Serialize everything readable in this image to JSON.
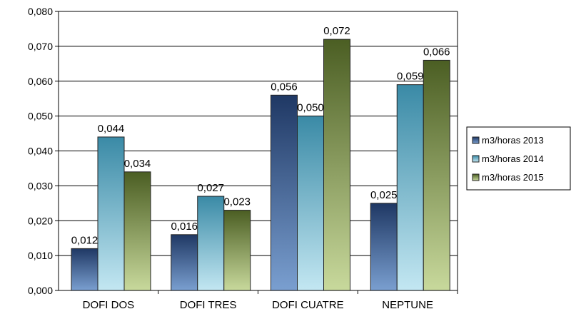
{
  "chart_data": {
    "type": "bar",
    "categories": [
      "DOFI DOS",
      "DOFI TRES",
      "DOFI CUATRE",
      "NEPTUNE"
    ],
    "series": [
      {
        "name": "m3/horas 2013",
        "values": [
          0.012,
          0.016,
          0.056,
          0.025
        ],
        "labels": [
          "0,012",
          "0,016",
          "0,056",
          "0,025"
        ],
        "color_dark": "#1f3864",
        "color_light": "#7a9fd0"
      },
      {
        "name": "m3/horas 2014",
        "values": [
          0.044,
          0.027,
          0.05,
          0.059
        ],
        "labels": [
          "0,044",
          "0,027",
          "0,050",
          "0,059"
        ],
        "color_dark": "#3a8aa6",
        "color_light": "#c3e7f2"
      },
      {
        "name": "m3/horas 2015",
        "values": [
          0.034,
          0.023,
          0.072,
          0.066
        ],
        "labels": [
          "0,034",
          "0,023",
          "0,072",
          "0,066"
        ],
        "color_dark": "#4b5e23",
        "color_light": "#c8d99c"
      }
    ],
    "y_ticks": [
      "0,000",
      "0,010",
      "0,020",
      "0,030",
      "0,040",
      "0,050",
      "0,060",
      "0,070",
      "0,080"
    ],
    "ylim": [
      0,
      0.08
    ],
    "grid": true,
    "legend_position": "right",
    "title": "",
    "xlabel": "",
    "ylabel": ""
  }
}
